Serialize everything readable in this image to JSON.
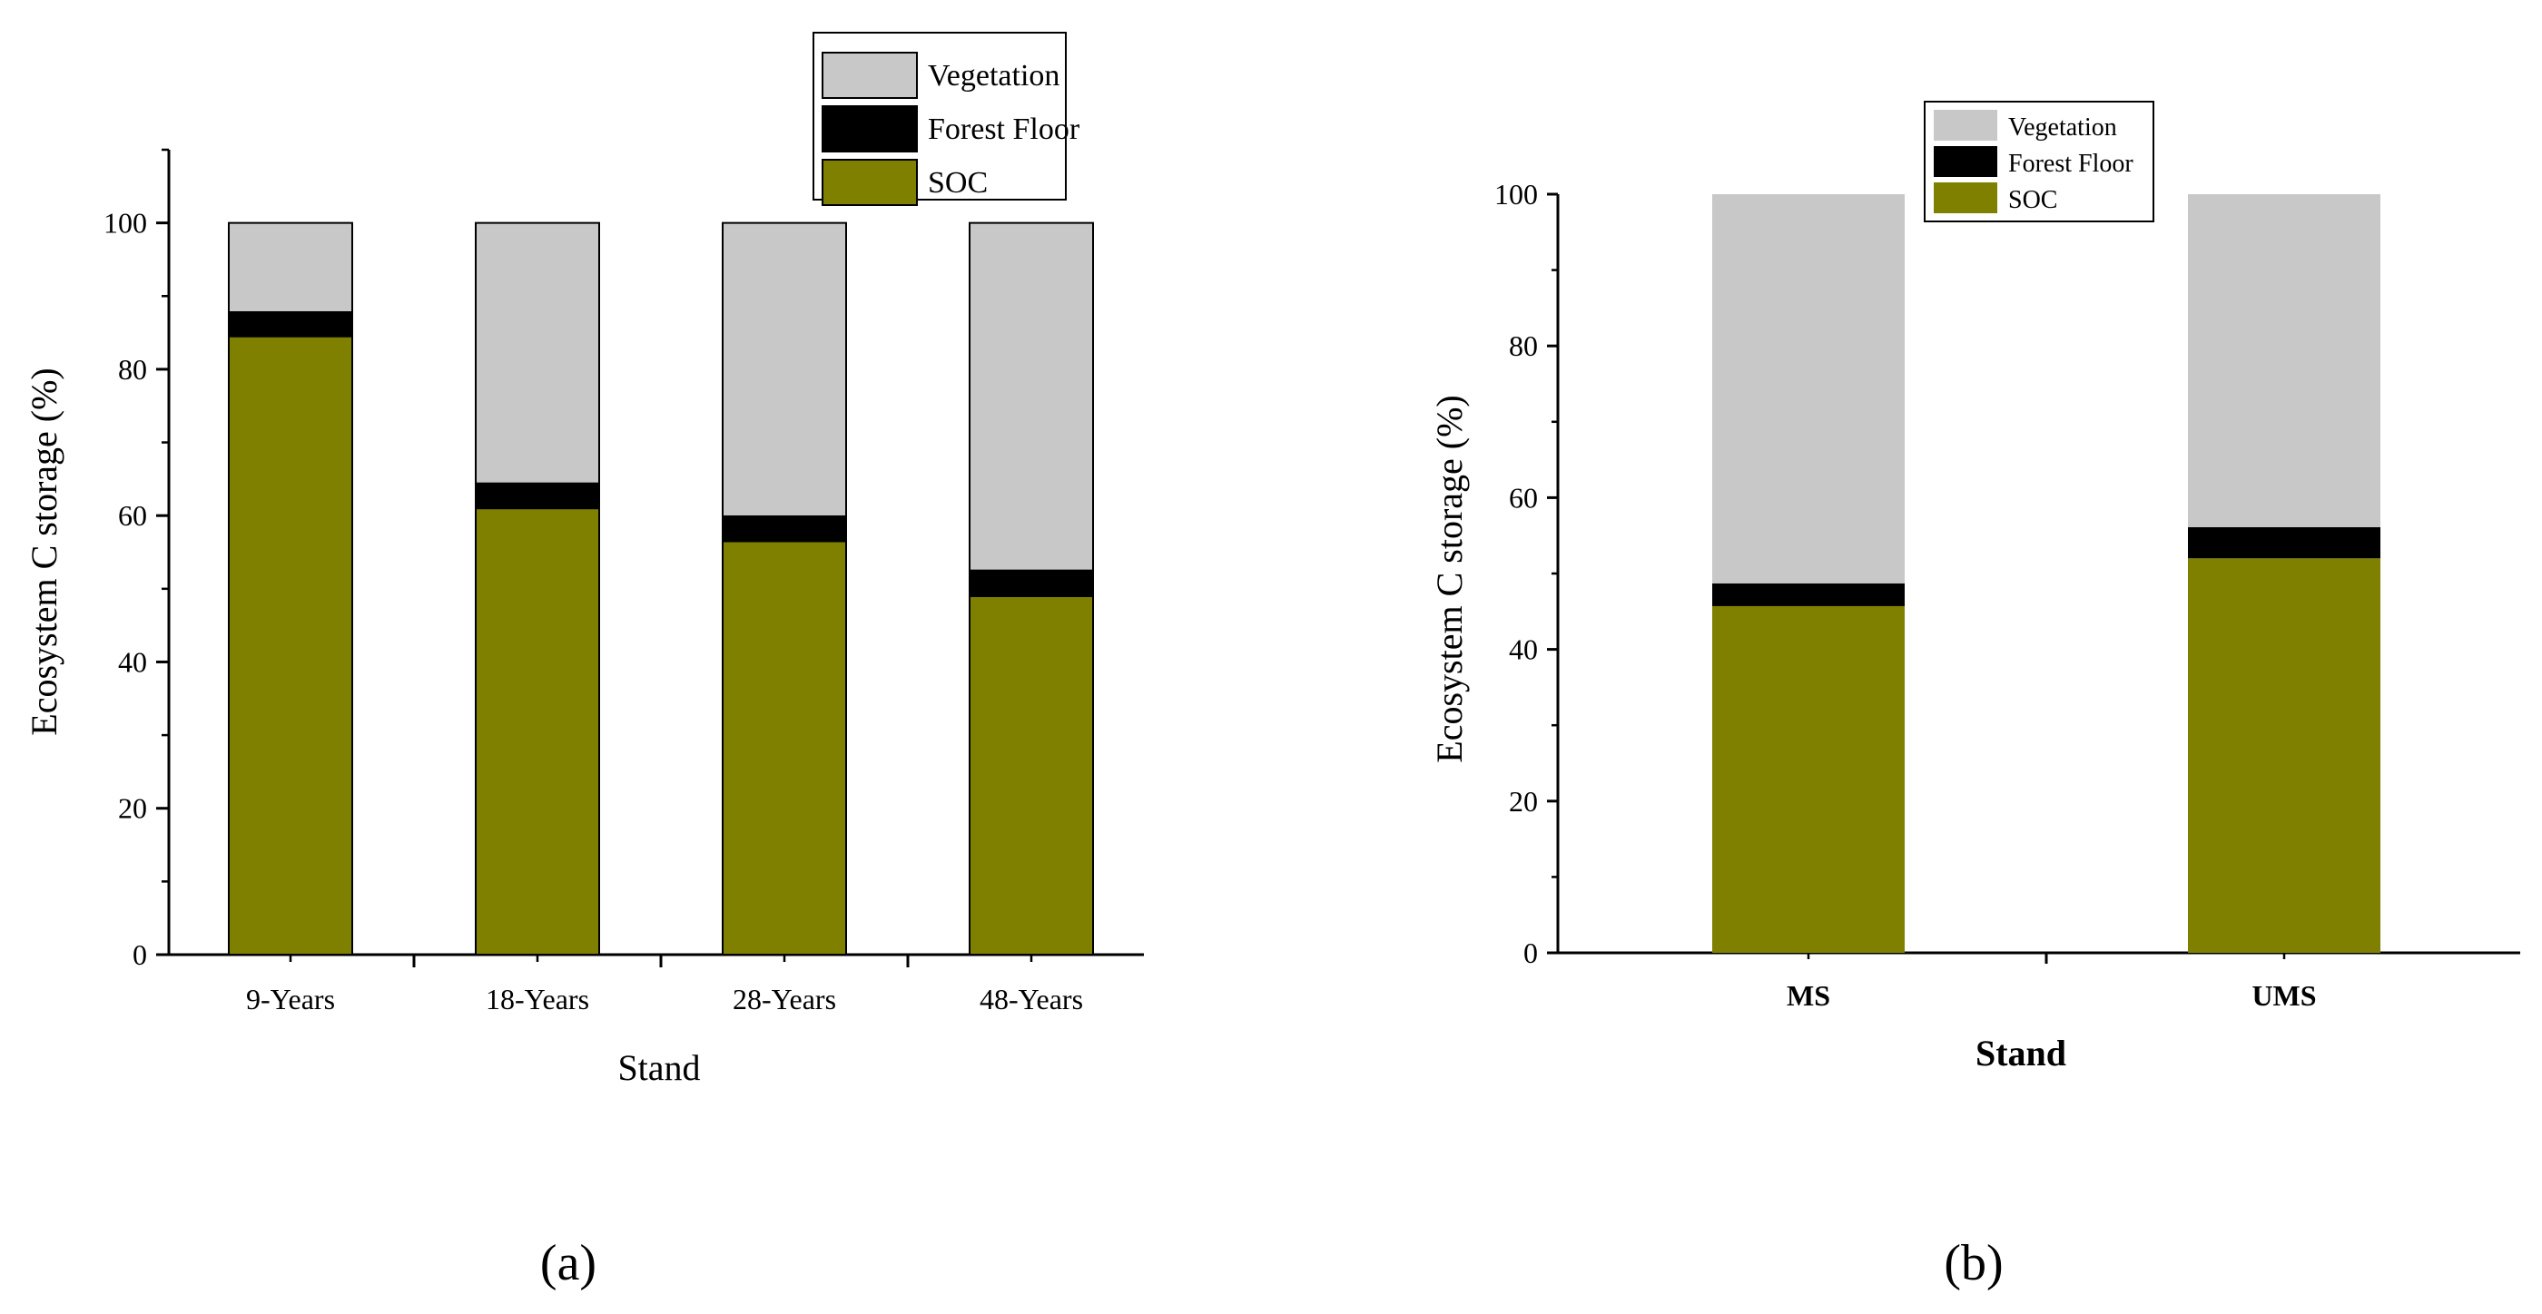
{
  "chart_data": [
    {
      "type": "bar",
      "stacked": true,
      "panel": "a",
      "title": "",
      "xlabel": "Stand",
      "ylabel": "Ecosystem C storage (%)",
      "categories": [
        "9-Years",
        "18-Years",
        "28-Years",
        "48-Years"
      ],
      "ylim": [
        0,
        110
      ],
      "yticks": [
        "0",
        "20",
        "40",
        "60",
        "80",
        "100"
      ],
      "legend_position": "top-right",
      "series": [
        {
          "name": "SOC",
          "values": [
            84.5,
            61,
            56.5,
            49
          ],
          "color": "#808000"
        },
        {
          "name": "Forest Floor",
          "values": [
            3.3,
            3.4,
            3.4,
            3.5
          ],
          "color": "#000000"
        },
        {
          "name": "Vegetation",
          "values": [
            12.2,
            35.6,
            40.1,
            47.5
          ],
          "color": "#c8c8c8"
        }
      ]
    },
    {
      "type": "bar",
      "stacked": true,
      "panel": "b",
      "title": "",
      "xlabel": "Stand",
      "ylabel": "Ecosystem C storage (%)",
      "categories": [
        "MS",
        "UMS"
      ],
      "ylim": [
        0,
        100
      ],
      "yticks": [
        "0",
        "20",
        "40",
        "60",
        "80",
        "100"
      ],
      "legend_position": "top-center",
      "series": [
        {
          "name": "SOC",
          "values": [
            45.7,
            52
          ],
          "color": "#808000"
        },
        {
          "name": "Forest Floor",
          "values": [
            3,
            4.1
          ],
          "color": "#000000"
        },
        {
          "name": "Vegetation",
          "values": [
            51.3,
            43.9
          ],
          "color": "#c8c8c8"
        }
      ]
    }
  ],
  "labels": {
    "panel_a": "(a)",
    "panel_b": "(b)"
  }
}
